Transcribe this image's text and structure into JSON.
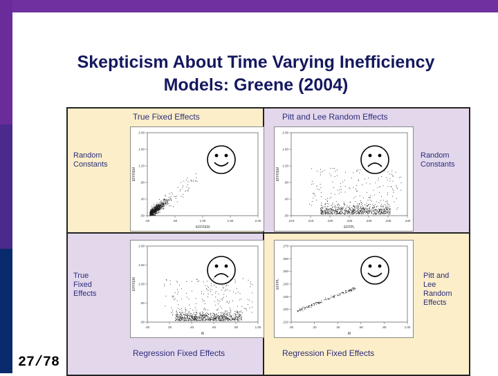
{
  "slide": {
    "title_line1": "Skepticism About Time Varying Inefficiency",
    "title_line2": "Models:  Greene (2004)",
    "page_number": "27/78"
  },
  "figure": {
    "col_captions": {
      "top_left": "True Fixed Effects",
      "top_right": "Pitt and Lee Random Effects",
      "bottom_left": "Regression Fixed Effects",
      "bottom_right": "Regression Fixed Effects"
    },
    "row_labels": {
      "left_top": "Random\nConstants",
      "left_bottom": "True\nFixed\nEffects",
      "right_top": "Random\nConstants",
      "right_bottom": "Pitt and\nLee\nRandom\nEffects"
    },
    "faces": {
      "top_left": "happy-face-icon",
      "top_right": "sad-face-icon",
      "bottom_left": "sad-face-icon",
      "bottom_right": "happy-face-icon"
    }
  },
  "chart_data": [
    {
      "type": "scatter",
      "xlabel": "EFFFEM",
      "ylabel": "EFFREM",
      "xticks": [
        ".00",
        ".50",
        "1.00",
        "1.50",
        "2.00"
      ],
      "yticks": [
        ".00",
        ".40",
        ".80",
        "1.20",
        "1.60",
        "2.00"
      ],
      "xlim": [
        0,
        2
      ],
      "ylim": [
        0,
        2
      ],
      "pattern": "positive correlated cluster near origin"
    },
    {
      "type": "scatter",
      "xlabel": "EFFPL",
      "ylabel": "EFFREM",
      "xticks": [
        ".210",
        ".215",
        ".220",
        ".225",
        ".230",
        ".235",
        ".240"
      ],
      "yticks": [
        ".00",
        ".40",
        ".80",
        "1.20",
        "1.60",
        "2.00"
      ],
      "pattern": "dense band near bottom, scattered above"
    },
    {
      "type": "scatter",
      "xlabel": "AI",
      "ylabel": "EFFFEM",
      "xticks": [
        ".00",
        ".20",
        ".40",
        ".60",
        ".80",
        "1.00"
      ],
      "yticks": [
        ".00",
        ".50",
        "1.00",
        "1.50",
        "2.00"
      ],
      "pattern": "dense band near bottom, scattered above"
    },
    {
      "type": "scatter",
      "xlabel": "AI",
      "ylabel": "EFFPL",
      "xticks": [
        ".00",
        ".20",
        ".40",
        ".60",
        ".80",
        "1.00"
      ],
      "yticks": [
        ".210",
        ".220",
        ".230",
        ".240",
        ".250",
        ".260",
        ".270"
      ],
      "pattern": "tight positive linear relation"
    }
  ]
}
